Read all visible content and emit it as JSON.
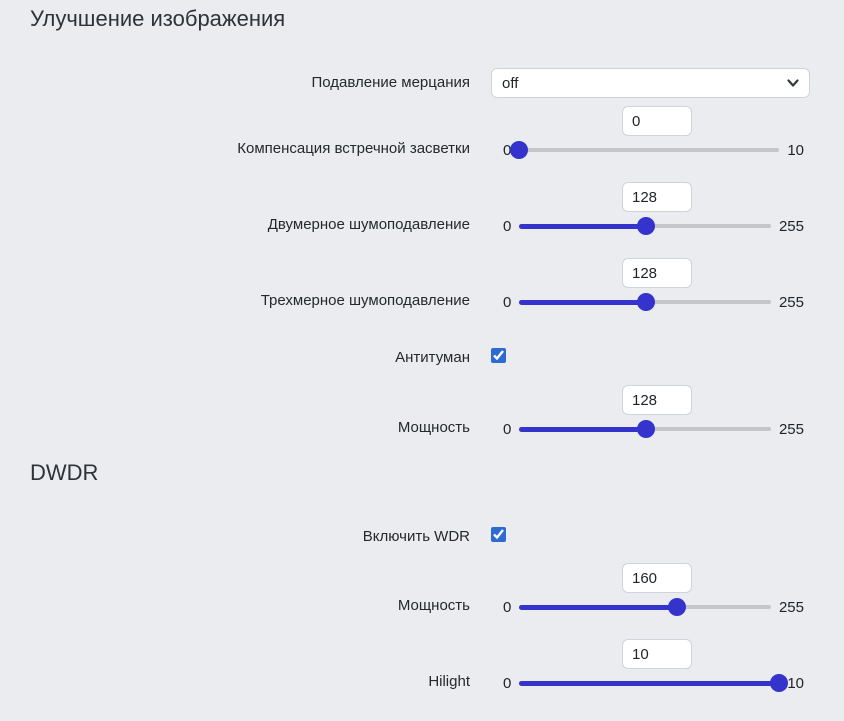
{
  "colors": {
    "background": "#eaecef",
    "slider_accent": "#3433cc",
    "slider_track": "#c4c6c9",
    "checkbox_accent": "#2d6bd2"
  },
  "image_enhancement": {
    "title": "Улучшение изображения",
    "flicker": {
      "label": "Подавление мерцания",
      "selected": "off",
      "icon": "chevron-down-icon"
    },
    "blc": {
      "label": "Компенсация встречной засветки",
      "value": 0,
      "min": 0,
      "max": 10
    },
    "nr2d": {
      "label": "Двумерное шумоподавление",
      "value": 128,
      "min": 0,
      "max": 255
    },
    "nr3d": {
      "label": "Трехмерное шумоподавление",
      "value": 128,
      "min": 0,
      "max": 255
    },
    "antifog": {
      "label": "Антитуман",
      "checked": true
    },
    "antifog_strength": {
      "label": "Мощность",
      "value": 128,
      "min": 0,
      "max": 255
    }
  },
  "dwdr": {
    "title": "DWDR",
    "enable_wdr": {
      "label": "Включить WDR",
      "checked": true
    },
    "strength": {
      "label": "Мощность",
      "value": 160,
      "min": 0,
      "max": 255
    },
    "hilight": {
      "label": "Hilight",
      "value": 10,
      "min": 0,
      "max": 10
    }
  }
}
